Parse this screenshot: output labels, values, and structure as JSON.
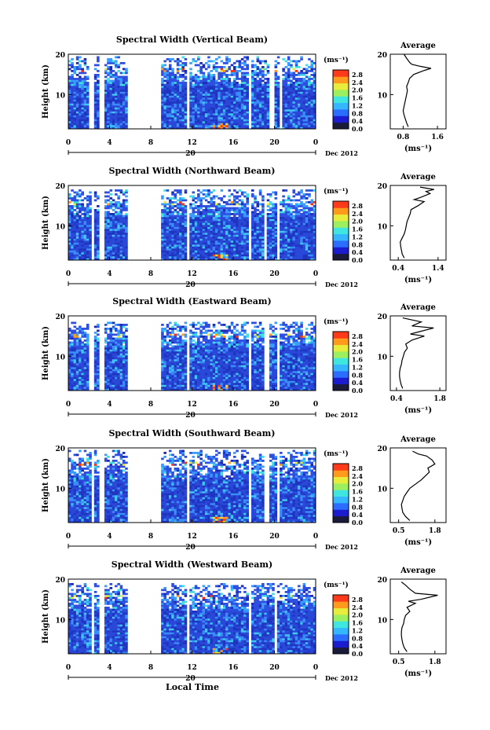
{
  "figure": {
    "xlabel": "Local Time",
    "date_label": "Dec 2012",
    "day_label": "20",
    "colorbar_unit": "(ms⁻¹)",
    "colorbar_ticks": [
      "2.8",
      "2.4",
      "2.0",
      "1.6",
      "1.2",
      "0.8",
      "0.4",
      "0.0"
    ],
    "colorbar_colors": [
      "#1a1a3a",
      "#1b1bd0",
      "#2b6dff",
      "#35b7ff",
      "#3fe6e0",
      "#9cf060",
      "#e8ec3a",
      "#ff9a1c",
      "#ff3a1a"
    ],
    "background_color": "#ffffff",
    "data_colors": {
      "low": "#1f3fd0",
      "mid": "#3aa0ff",
      "high": "#ff3010"
    }
  },
  "chart_data": [
    {
      "type": "heatmap",
      "title": "Spectral Width (Vertical Beam)",
      "ylabel": "Height (km)",
      "xlabel": "",
      "x_ticks": [
        "0",
        "4",
        "8",
        "12",
        "16",
        "20",
        "0"
      ],
      "y_ticks": [
        "20",
        "10"
      ],
      "xlim": [
        0,
        24
      ],
      "ylim": [
        1.5,
        20
      ],
      "data_gaps_hours": [
        [
          2.1,
          2.4
        ],
        [
          3.0,
          3.5
        ],
        [
          5.8,
          9.0
        ],
        [
          11.5,
          11.8
        ],
        [
          17.5,
          17.8
        ],
        [
          19.6,
          19.9
        ],
        [
          20.5,
          20.8
        ]
      ],
      "valid_top_km": 19.5,
      "average_profile": {
        "title": "Average",
        "xlabel": "(ms⁻¹)",
        "x_ticks": [
          "0.8",
          "1.6"
        ],
        "y_ticks": [
          "20",
          "10"
        ],
        "xlim": [
          0.5,
          1.8
        ],
        "ylim": [
          1.5,
          20
        ],
        "points": [
          [
            0.92,
            2
          ],
          [
            0.88,
            3
          ],
          [
            0.85,
            4
          ],
          [
            0.82,
            5
          ],
          [
            0.8,
            6
          ],
          [
            0.82,
            7
          ],
          [
            0.84,
            8
          ],
          [
            0.86,
            9
          ],
          [
            0.88,
            10
          ],
          [
            0.9,
            11
          ],
          [
            0.88,
            12
          ],
          [
            0.92,
            13
          ],
          [
            0.95,
            14
          ],
          [
            1.05,
            15
          ],
          [
            1.3,
            16
          ],
          [
            1.45,
            16.5
          ],
          [
            1.2,
            17
          ],
          [
            1.0,
            17.5
          ],
          [
            0.95,
            18
          ],
          [
            0.88,
            19
          ],
          [
            0.82,
            20
          ]
        ]
      }
    },
    {
      "type": "heatmap",
      "title": "Spectral Width (Northward Beam)",
      "ylabel": "Height (km)",
      "xlabel": "",
      "x_ticks": [
        "0",
        "4",
        "8",
        "12",
        "16",
        "20",
        "0"
      ],
      "y_ticks": [
        "20",
        "10"
      ],
      "xlim": [
        0,
        24
      ],
      "ylim": [
        1.5,
        20
      ],
      "data_gaps_hours": [
        [
          2.3,
          2.5
        ],
        [
          2.9,
          3.4
        ],
        [
          5.8,
          9.0
        ],
        [
          11.5,
          11.8
        ],
        [
          17.5,
          17.8
        ],
        [
          18.9,
          19.2
        ],
        [
          20.2,
          20.5
        ]
      ],
      "valid_top_km": 19.0,
      "average_profile": {
        "title": "Average",
        "xlabel": "(ms⁻¹)",
        "x_ticks": [
          "0.4",
          "1.4"
        ],
        "y_ticks": [
          "20",
          "10"
        ],
        "xlim": [
          0.2,
          1.6
        ],
        "ylim": [
          1.5,
          20
        ],
        "points": [
          [
            0.55,
            2
          ],
          [
            0.5,
            3
          ],
          [
            0.48,
            4
          ],
          [
            0.46,
            5
          ],
          [
            0.45,
            6
          ],
          [
            0.5,
            7
          ],
          [
            0.55,
            8
          ],
          [
            0.58,
            9
          ],
          [
            0.6,
            10
          ],
          [
            0.62,
            11
          ],
          [
            0.66,
            12
          ],
          [
            0.7,
            13
          ],
          [
            0.72,
            14
          ],
          [
            0.9,
            15
          ],
          [
            1.05,
            16
          ],
          [
            0.8,
            16.5
          ],
          [
            0.95,
            17
          ],
          [
            1.2,
            18
          ],
          [
            1.1,
            18.5
          ],
          [
            1.3,
            19
          ],
          [
            0.95,
            19.6
          ]
        ]
      }
    },
    {
      "type": "heatmap",
      "title": "Spectral Width (Eastward Beam)",
      "ylabel": "Height (km)",
      "xlabel": "",
      "x_ticks": [
        "0",
        "4",
        "8",
        "12",
        "16",
        "20",
        "0"
      ],
      "y_ticks": [
        "20",
        "10"
      ],
      "xlim": [
        0,
        24
      ],
      "ylim": [
        1.5,
        20
      ],
      "data_gaps_hours": [
        [
          2.1,
          2.4
        ],
        [
          3.0,
          3.5
        ],
        [
          5.8,
          9.0
        ],
        [
          11.5,
          11.8
        ],
        [
          17.5,
          17.8
        ],
        [
          19.1,
          19.4
        ],
        [
          20.2,
          20.5
        ]
      ],
      "valid_top_km": 18.5,
      "average_profile": {
        "title": "Average",
        "xlabel": "(ms⁻¹)",
        "x_ticks": [
          "0.4",
          "1.8"
        ],
        "y_ticks": [
          "20",
          "10"
        ],
        "xlim": [
          0.2,
          2.0
        ],
        "ylim": [
          1.5,
          20
        ],
        "points": [
          [
            0.6,
            2
          ],
          [
            0.55,
            3
          ],
          [
            0.52,
            4
          ],
          [
            0.5,
            5
          ],
          [
            0.5,
            6
          ],
          [
            0.52,
            7
          ],
          [
            0.56,
            8
          ],
          [
            0.58,
            9
          ],
          [
            0.62,
            10
          ],
          [
            0.66,
            11
          ],
          [
            0.75,
            12
          ],
          [
            0.7,
            13
          ],
          [
            0.9,
            14
          ],
          [
            1.3,
            15
          ],
          [
            0.85,
            15.5
          ],
          [
            1.1,
            16
          ],
          [
            1.6,
            17
          ],
          [
            0.9,
            17.5
          ],
          [
            1.2,
            18.5
          ],
          [
            0.6,
            19.5
          ]
        ]
      }
    },
    {
      "type": "heatmap",
      "title": "Spectral Width (Southward Beam)",
      "ylabel": "Height (km)",
      "xlabel": "",
      "x_ticks": [
        "0",
        "4",
        "8",
        "12",
        "16",
        "20",
        "0"
      ],
      "y_ticks": [
        "20",
        "10"
      ],
      "xlim": [
        0,
        24
      ],
      "ylim": [
        1.5,
        20
      ],
      "data_gaps_hours": [
        [
          2.3,
          2.5
        ],
        [
          2.9,
          3.4
        ],
        [
          5.8,
          9.0
        ],
        [
          11.5,
          11.8
        ],
        [
          17.5,
          17.8
        ],
        [
          19.1,
          19.4
        ],
        [
          20.2,
          20.5
        ]
      ],
      "valid_top_km": 19.5,
      "average_profile": {
        "title": "Average",
        "xlabel": "(ms⁻¹)",
        "x_ticks": [
          "0.5",
          "1.8"
        ],
        "y_ticks": [
          "20",
          "10"
        ],
        "xlim": [
          0.2,
          2.2
        ],
        "ylim": [
          1.5,
          20
        ],
        "points": [
          [
            0.9,
            2
          ],
          [
            0.75,
            3
          ],
          [
            0.65,
            4
          ],
          [
            0.62,
            5
          ],
          [
            0.6,
            6
          ],
          [
            0.65,
            7
          ],
          [
            0.7,
            8
          ],
          [
            0.8,
            9
          ],
          [
            0.9,
            10
          ],
          [
            1.1,
            11
          ],
          [
            1.3,
            12
          ],
          [
            1.45,
            13
          ],
          [
            1.6,
            14
          ],
          [
            1.55,
            15
          ],
          [
            1.8,
            16
          ],
          [
            1.7,
            17
          ],
          [
            1.5,
            18
          ],
          [
            1.2,
            18.5
          ],
          [
            1.0,
            19.2
          ]
        ]
      }
    },
    {
      "type": "heatmap",
      "title": "Spectral Width (Westward Beam)",
      "ylabel": "Height (km)",
      "xlabel": "Local Time",
      "x_ticks": [
        "0",
        "4",
        "8",
        "12",
        "16",
        "20",
        "0"
      ],
      "y_ticks": [
        "20",
        "10"
      ],
      "xlim": [
        0,
        24
      ],
      "ylim": [
        1.5,
        20
      ],
      "data_gaps_hours": [
        [
          2.3,
          2.5
        ],
        [
          2.9,
          3.4
        ],
        [
          5.8,
          9.0
        ],
        [
          11.5,
          11.8
        ],
        [
          17.5,
          17.8
        ],
        [
          19.9,
          20.2
        ]
      ],
      "valid_top_km": 19.0,
      "average_profile": {
        "title": "Average",
        "xlabel": "(ms⁻¹)",
        "x_ticks": [
          "0.5",
          "1.8"
        ],
        "y_ticks": [
          "20",
          "10"
        ],
        "xlim": [
          0.2,
          2.2
        ],
        "ylim": [
          1.5,
          20
        ],
        "points": [
          [
            0.8,
            2
          ],
          [
            0.7,
            3
          ],
          [
            0.65,
            4
          ],
          [
            0.62,
            5
          ],
          [
            0.6,
            6
          ],
          [
            0.6,
            7
          ],
          [
            0.62,
            8
          ],
          [
            0.68,
            9
          ],
          [
            0.7,
            10
          ],
          [
            0.75,
            11
          ],
          [
            0.9,
            12
          ],
          [
            0.8,
            13
          ],
          [
            1.1,
            14
          ],
          [
            0.85,
            14.5
          ],
          [
            1.3,
            15
          ],
          [
            1.9,
            16
          ],
          [
            1.1,
            16.5
          ],
          [
            0.9,
            17.5
          ],
          [
            0.75,
            18.5
          ],
          [
            0.6,
            19.3
          ]
        ]
      }
    }
  ]
}
